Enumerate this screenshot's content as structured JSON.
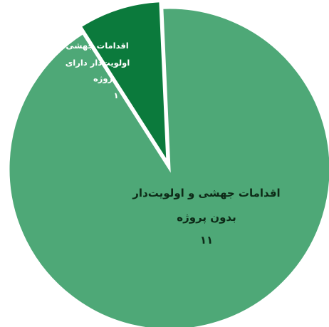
{
  "chart_data": {
    "type": "pie",
    "colors": [
      "#4ea877",
      "#0b7a3c"
    ],
    "slices": [
      {
        "label_lines": [
          "اقدامات جهشی و اولویت‌دار",
          "بدون پروژه"
        ],
        "value": 11,
        "value_text": "۱۱",
        "color": "#4ea877"
      },
      {
        "label_lines": [
          "اقدامات جهشی و",
          "اولویت‌دار دارای",
          "پروژه"
        ],
        "value": 1,
        "value_text": "۱",
        "color": "#0b7a3c"
      }
    ]
  }
}
